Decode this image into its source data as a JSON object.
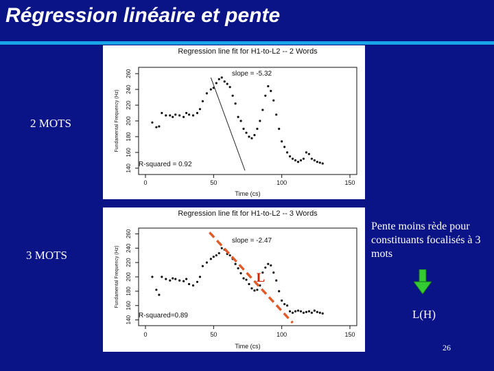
{
  "slide": {
    "title": "Régression linéaire et pente",
    "label_top": "2 MOTS",
    "label_bottom": "3 MOTS",
    "note": "Pente moins rède pour constituants focalisés à 3 mots",
    "note_result": "L(H)",
    "page_number": "26",
    "accent_color": "#1aa6e6",
    "background_color": "#0b1487",
    "arrow_color": "#33cc33"
  },
  "plots": [
    {
      "title": "Regression line fit for H1-to-L2 -- 2 Words",
      "xlabel": "Time (cs)",
      "ylabel": "Fundamental Frequency (Hz)",
      "xticks": [
        "0",
        "50",
        "100",
        "150"
      ],
      "yticks": [
        "140",
        "160",
        "180",
        "200",
        "220",
        "240",
        "260"
      ],
      "slope_label": "slope = -5.32",
      "rsq_label": "R-squared = 0.92"
    },
    {
      "title": "Regression line fit for H1-to-L2 -- 3 Words",
      "xlabel": "Time (cs)",
      "ylabel": "Fundamental Frequency (Hz)",
      "xticks": [
        "0",
        "50",
        "100",
        "150"
      ],
      "yticks": [
        "140",
        "160",
        "180",
        "200",
        "220",
        "240",
        "260"
      ],
      "slope_label": "slope = -2.47",
      "rsq_label": "R-squared=0.89",
      "marker_label": "L",
      "marker_color": "#cc2200",
      "fit_line_color": "#e05a2a"
    }
  ],
  "chart_data": [
    {
      "type": "scatter",
      "title": "Regression line fit for H1-to-L2 -- 2 Words",
      "xlabel": "Time (cs)",
      "ylabel": "Fundamental Frequency (Hz)",
      "xlim": [
        0,
        150
      ],
      "ylim": [
        132,
        268
      ],
      "x": [
        5,
        8,
        10,
        12,
        15,
        18,
        20,
        22,
        25,
        28,
        30,
        32,
        35,
        38,
        40,
        42,
        45,
        48,
        50,
        52,
        54,
        56,
        58,
        60,
        62,
        64,
        66,
        68,
        70,
        72,
        74,
        76,
        78,
        80,
        82,
        84,
        86,
        88,
        90,
        92,
        94,
        96,
        98,
        100,
        102,
        104,
        106,
        108,
        110,
        112,
        114,
        116,
        118,
        120,
        122,
        124,
        126,
        128,
        130
      ],
      "y": [
        198,
        192,
        193,
        210,
        207,
        207,
        205,
        208,
        207,
        205,
        210,
        208,
        207,
        210,
        215,
        225,
        235,
        240,
        242,
        248,
        253,
        255,
        250,
        247,
        243,
        232,
        222,
        205,
        200,
        190,
        185,
        180,
        178,
        182,
        190,
        200,
        214,
        232,
        244,
        238,
        226,
        208,
        190,
        174,
        167,
        160,
        155,
        152,
        150,
        148,
        150,
        152,
        160,
        158,
        152,
        150,
        148,
        147,
        146
      ],
      "fit": {
        "slope": -5.32,
        "r_squared": 0.92,
        "x": [
          48,
          73
        ],
        "y": [
          255,
          137
        ]
      }
    },
    {
      "type": "scatter",
      "title": "Regression line fit for H1-to-L2 -- 3 Words",
      "xlabel": "Time (cs)",
      "ylabel": "Fundamental Frequency (Hz)",
      "xlim": [
        0,
        150
      ],
      "ylim": [
        132,
        268
      ],
      "x": [
        5,
        8,
        10,
        12,
        15,
        18,
        20,
        22,
        25,
        28,
        30,
        32,
        35,
        38,
        40,
        42,
        45,
        48,
        50,
        52,
        54,
        56,
        58,
        60,
        62,
        64,
        66,
        68,
        70,
        72,
        74,
        76,
        78,
        80,
        82,
        84,
        86,
        88,
        90,
        92,
        94,
        96,
        98,
        100,
        102,
        104,
        106,
        108,
        110,
        112,
        114,
        116,
        118,
        120,
        122,
        124,
        126,
        128,
        130
      ],
      "y": [
        200,
        182,
        175,
        200,
        197,
        195,
        198,
        197,
        195,
        194,
        197,
        190,
        188,
        193,
        200,
        215,
        220,
        225,
        228,
        230,
        233,
        240,
        238,
        232,
        230,
        225,
        218,
        212,
        205,
        198,
        196,
        190,
        184,
        181,
        182,
        188,
        206,
        213,
        218,
        216,
        206,
        195,
        180,
        167,
        162,
        160,
        152,
        150,
        152,
        153,
        152,
        150,
        151,
        152,
        150,
        153,
        151,
        150,
        149
      ],
      "fit": {
        "slope": -2.47,
        "r_squared": 0.89,
        "x": [
          47,
          108
        ],
        "y": [
          262,
          136
        ]
      }
    }
  ]
}
